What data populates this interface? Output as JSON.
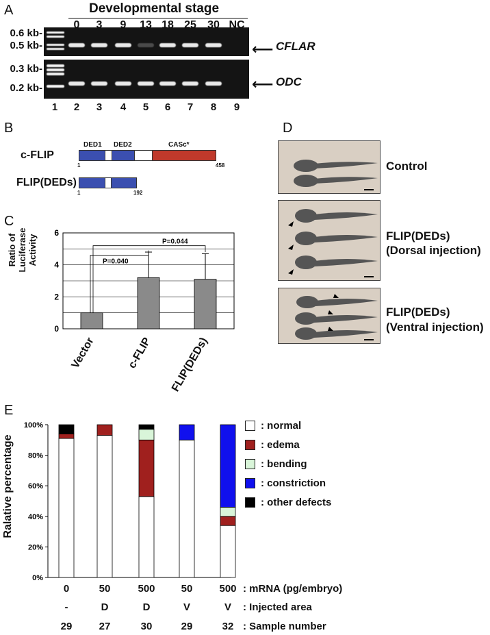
{
  "panelA": {
    "label": "A",
    "heading": "Developmental stage",
    "stages": [
      "0",
      "3",
      "9",
      "13",
      "18",
      "25",
      "30",
      "NC"
    ],
    "kb_top": [
      "0.6 kb-",
      "0.5 kb-"
    ],
    "kb_bottom": [
      "0.3 kb-",
      "0.2 kb-"
    ],
    "gene_top": "CFLAR",
    "gene_bottom": "ODC",
    "lanes": [
      "1",
      "2",
      "3",
      "4",
      "5",
      "6",
      "7",
      "8",
      "9"
    ]
  },
  "panelB": {
    "label": "B",
    "cflip_name": "c-FLIP",
    "flipdeds_name": "FLIP(DEDs)",
    "ded1": "DED1",
    "ded2": "DED2",
    "casc": "CASc*",
    "start1": "1",
    "end1": "458",
    "start2": "1",
    "end2": "192",
    "colors": {
      "ded": "#3b4fb0",
      "casc": "#c0392b"
    }
  },
  "panelC": {
    "label": "C",
    "ylabel_line1": "Ratio of",
    "ylabel_line2": "Luciferase Activity",
    "p1": "P=0.040",
    "p2": "P=0.044",
    "yticks": [
      "0",
      "2",
      "4",
      "6"
    ]
  },
  "panelD": {
    "label": "D",
    "control": "Control",
    "dorsal_title": "FLIP(DEDs)",
    "dorsal_sub": "(Dorsal injection)",
    "ventral_title": "FLIP(DEDs)",
    "ventral_sub": "(Ventral injection)"
  },
  "panelE": {
    "label": "E",
    "ylabel": "Ralative percentage",
    "yticks": [
      "0%",
      "20%",
      "40%",
      "60%",
      "80%",
      "100%"
    ],
    "legend": [
      ": normal",
      ": edema",
      ": bending",
      ": constriction",
      ": other defects"
    ],
    "row_labels": [
      ": mRNA (pg/embryo)",
      ": Injected area",
      ": Sample number"
    ],
    "mrna": [
      "0",
      "50",
      "500",
      "50",
      "500"
    ],
    "area": [
      "-",
      "D",
      "D",
      "V",
      "V"
    ],
    "samples": [
      "29",
      "27",
      "30",
      "29",
      "32"
    ]
  },
  "chart_data": [
    {
      "type": "bar",
      "categories": [
        "Vector",
        "c-FLIP",
        "FLIP(DEDs)"
      ],
      "values": [
        1.0,
        3.2,
        3.1
      ],
      "errors": [
        0,
        1.6,
        1.6
      ],
      "ylim": [
        0,
        6
      ],
      "ylabel": "Ratio of Luciferase Activity",
      "color": "#8a8a8a",
      "grid": true
    },
    {
      "type": "bar",
      "stacked": true,
      "categories": [
        "0/-",
        "50/D",
        "500/D",
        "50/V",
        "500/V"
      ],
      "ylim": [
        0,
        100
      ],
      "ylabel": "Ralative percentage",
      "series": [
        {
          "name": "normal",
          "color": "#ffffff",
          "values": [
            91,
            93,
            53,
            90,
            34
          ]
        },
        {
          "name": "edema",
          "color": "#a0201e",
          "values": [
            3,
            7,
            37,
            0,
            6
          ]
        },
        {
          "name": "bending",
          "color": "#d9f5d9",
          "values": [
            0,
            0,
            7,
            0,
            6
          ]
        },
        {
          "name": "constriction",
          "color": "#1010ee",
          "values": [
            0,
            0,
            0,
            10,
            54
          ]
        },
        {
          "name": "other defects",
          "color": "#000000",
          "values": [
            6,
            0,
            3,
            0,
            0
          ]
        }
      ]
    }
  ]
}
